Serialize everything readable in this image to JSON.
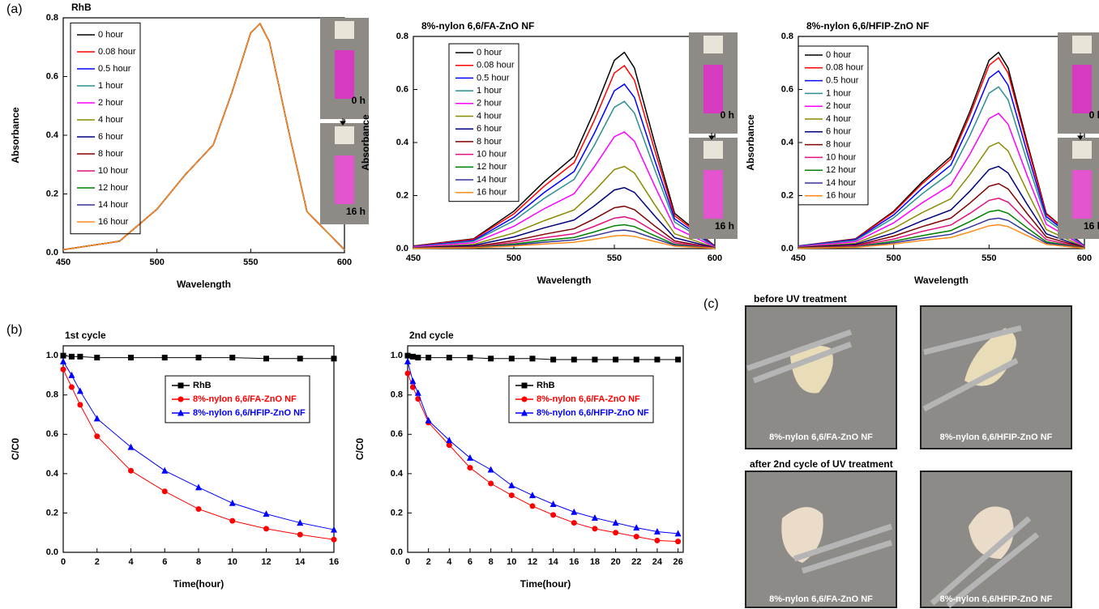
{
  "figure": {
    "panel_labels": [
      "(a)",
      "(b)",
      "(c)"
    ],
    "cuvette_labels": [
      "0 h",
      "16 h"
    ],
    "photo_headers": [
      "before UV treatment",
      "after 2nd cycle of UV treatment"
    ],
    "samples": [
      "8%-nylon 6,6/FA-ZnO NF",
      "8%-nylon 6,6/HFIP-ZnO NF"
    ]
  },
  "chart_data": [
    {
      "type": "line",
      "title": "RhB",
      "xlabel": "Wavelength",
      "ylabel": "Absorbance",
      "x": [
        450,
        480,
        500,
        515,
        530,
        540,
        550,
        555,
        560,
        570,
        580,
        600
      ],
      "xlim": [
        450,
        600
      ],
      "xticks": [
        450,
        500,
        550,
        600
      ],
      "ylim": [
        0,
        0.8
      ],
      "yticks": [
        {
          "value": 0,
          "label": "0.0"
        },
        0.2,
        0.4,
        0.6,
        0.8
      ],
      "series": [
        {
          "name": "0 hour",
          "color": "#000000",
          "values": [
            0.01,
            0.039,
            0.148,
            0.265,
            0.367,
            0.546,
            0.749,
            0.78,
            0.718,
            0.421,
            0.14,
            0.01
          ]
        },
        {
          "name": "0.08 hour",
          "color": "#ff0000",
          "values": [
            0.01,
            0.039,
            0.148,
            0.265,
            0.367,
            0.546,
            0.749,
            0.78,
            0.718,
            0.421,
            0.14,
            0.01
          ]
        },
        {
          "name": "0.5 hour",
          "color": "#0000ff",
          "values": [
            0.01,
            0.039,
            0.148,
            0.265,
            0.367,
            0.546,
            0.749,
            0.78,
            0.718,
            0.421,
            0.14,
            0.01
          ]
        },
        {
          "name": "1 hour",
          "color": "#2b8f8f",
          "values": [
            0.01,
            0.039,
            0.148,
            0.265,
            0.367,
            0.546,
            0.749,
            0.78,
            0.718,
            0.421,
            0.14,
            0.01
          ]
        },
        {
          "name": "2 hour",
          "color": "#ff00ff",
          "values": [
            0.01,
            0.039,
            0.148,
            0.265,
            0.367,
            0.546,
            0.749,
            0.78,
            0.718,
            0.421,
            0.14,
            0.01
          ]
        },
        {
          "name": "4 hour",
          "color": "#8a8a00",
          "values": [
            0.01,
            0.039,
            0.148,
            0.265,
            0.367,
            0.546,
            0.749,
            0.78,
            0.718,
            0.421,
            0.14,
            0.01
          ]
        },
        {
          "name": "6 hour",
          "color": "#000080",
          "values": [
            0.01,
            0.039,
            0.148,
            0.265,
            0.367,
            0.546,
            0.749,
            0.78,
            0.718,
            0.421,
            0.14,
            0.01
          ]
        },
        {
          "name": "8 hour",
          "color": "#800000",
          "values": [
            0.01,
            0.039,
            0.148,
            0.265,
            0.367,
            0.546,
            0.749,
            0.78,
            0.718,
            0.421,
            0.14,
            0.01
          ]
        },
        {
          "name": "10 hour",
          "color": "#e0107f",
          "values": [
            0.01,
            0.039,
            0.148,
            0.265,
            0.367,
            0.546,
            0.749,
            0.78,
            0.718,
            0.421,
            0.14,
            0.01
          ]
        },
        {
          "name": "12 hour",
          "color": "#008000",
          "values": [
            0.01,
            0.039,
            0.148,
            0.265,
            0.367,
            0.546,
            0.749,
            0.78,
            0.718,
            0.421,
            0.14,
            0.01
          ]
        },
        {
          "name": "14 hour",
          "color": "#333399",
          "values": [
            0.01,
            0.039,
            0.148,
            0.265,
            0.367,
            0.546,
            0.749,
            0.78,
            0.718,
            0.421,
            0.14,
            0.01
          ]
        },
        {
          "name": "16 hour",
          "color": "#ff8c1a",
          "values": [
            0.01,
            0.039,
            0.148,
            0.265,
            0.367,
            0.546,
            0.749,
            0.78,
            0.718,
            0.421,
            0.14,
            0.01
          ]
        }
      ]
    },
    {
      "type": "line",
      "title": "8%-nylon 6,6/FA-ZnO NF",
      "xlabel": "Wavelength",
      "ylabel": "Absorbance",
      "x": [
        450,
        480,
        500,
        515,
        530,
        540,
        550,
        555,
        560,
        570,
        580,
        600
      ],
      "xlim": [
        450,
        600
      ],
      "xticks": [
        450,
        500,
        550,
        600
      ],
      "ylim": [
        0,
        0.8
      ],
      "yticks": [
        {
          "value": 0,
          "label": "0.0"
        },
        0.2,
        0.4,
        0.6,
        0.8
      ],
      "series": [
        {
          "name": "0 hour",
          "color": "#000000",
          "values": [
            0.01,
            0.037,
            0.141,
            0.252,
            0.348,
            0.518,
            0.71,
            0.74,
            0.681,
            0.4,
            0.133,
            0.01
          ]
        },
        {
          "name": "0.08 hour",
          "color": "#ff0000",
          "values": [
            0.009,
            0.035,
            0.131,
            0.235,
            0.324,
            0.483,
            0.662,
            0.69,
            0.635,
            0.373,
            0.124,
            0.009
          ]
        },
        {
          "name": "0.5 hour",
          "color": "#0000ff",
          "values": [
            0.008,
            0.031,
            0.118,
            0.211,
            0.291,
            0.434,
            0.595,
            0.62,
            0.57,
            0.335,
            0.112,
            0.008
          ]
        },
        {
          "name": "1 hour",
          "color": "#2b8f8f",
          "values": [
            0.007,
            0.028,
            0.105,
            0.189,
            0.261,
            0.389,
            0.533,
            0.555,
            0.511,
            0.3,
            0.1,
            0.007
          ]
        },
        {
          "name": "2 hour",
          "color": "#ff00ff",
          "values": [
            0.006,
            0.022,
            0.084,
            0.15,
            0.207,
            0.308,
            0.422,
            0.44,
            0.405,
            0.238,
            0.079,
            0.006
          ]
        },
        {
          "name": "4 hour",
          "color": "#8a8a00",
          "values": [
            0.004,
            0.016,
            0.059,
            0.105,
            0.146,
            0.217,
            0.298,
            0.31,
            0.285,
            0.167,
            0.056,
            0.004
          ]
        },
        {
          "name": "6 hour",
          "color": "#000080",
          "values": [
            0.003,
            0.012,
            0.044,
            0.078,
            0.108,
            0.161,
            0.221,
            0.23,
            0.212,
            0.124,
            0.041,
            0.003
          ]
        },
        {
          "name": "8 hour",
          "color": "#800000",
          "values": [
            0.002,
            0.008,
            0.03,
            0.054,
            0.075,
            0.112,
            0.154,
            0.16,
            0.147,
            0.086,
            0.029,
            0.002
          ]
        },
        {
          "name": "10 hour",
          "color": "#e0107f",
          "values": [
            0.002,
            0.006,
            0.023,
            0.041,
            0.056,
            0.084,
            0.115,
            0.12,
            0.11,
            0.065,
            0.022,
            0.002
          ]
        },
        {
          "name": "12 hour",
          "color": "#008000",
          "values": [
            0.001,
            0.005,
            0.017,
            0.031,
            0.042,
            0.063,
            0.086,
            0.09,
            0.083,
            0.049,
            0.016,
            0.001
          ]
        },
        {
          "name": "14 hour",
          "color": "#333399",
          "values": [
            0.001,
            0.004,
            0.013,
            0.024,
            0.033,
            0.049,
            0.067,
            0.07,
            0.064,
            0.038,
            0.013,
            0.001
          ]
        },
        {
          "name": "16 hour",
          "color": "#ff8c1a",
          "values": [
            0.001,
            0.003,
            0.01,
            0.017,
            0.024,
            0.035,
            0.048,
            0.05,
            0.046,
            0.027,
            0.009,
            0.001
          ]
        }
      ]
    },
    {
      "type": "line",
      "title": "8%-nylon 6,6/HFIP-ZnO NF",
      "xlabel": "Wavelength",
      "ylabel": "Absorbance",
      "x": [
        450,
        480,
        500,
        515,
        530,
        540,
        550,
        555,
        560,
        570,
        580,
        600
      ],
      "xlim": [
        450,
        600
      ],
      "xticks": [
        450,
        500,
        550,
        600
      ],
      "ylim": [
        0,
        0.8
      ],
      "yticks": [
        {
          "value": 0,
          "label": "0.0"
        },
        0.2,
        0.4,
        0.6,
        0.8
      ],
      "series": [
        {
          "name": "0 hour",
          "color": "#000000",
          "values": [
            0.01,
            0.037,
            0.141,
            0.252,
            0.348,
            0.518,
            0.71,
            0.74,
            0.681,
            0.4,
            0.133,
            0.01
          ]
        },
        {
          "name": "0.08 hour",
          "color": "#ff0000",
          "values": [
            0.009,
            0.036,
            0.137,
            0.245,
            0.338,
            0.504,
            0.691,
            0.72,
            0.662,
            0.389,
            0.13,
            0.009
          ]
        },
        {
          "name": "0.5 hour",
          "color": "#0000ff",
          "values": [
            0.009,
            0.034,
            0.127,
            0.228,
            0.315,
            0.469,
            0.643,
            0.67,
            0.616,
            0.362,
            0.121,
            0.009
          ]
        },
        {
          "name": "1 hour",
          "color": "#2b8f8f",
          "values": [
            0.008,
            0.031,
            0.116,
            0.207,
            0.287,
            0.427,
            0.586,
            0.61,
            0.561,
            0.329,
            0.11,
            0.008
          ]
        },
        {
          "name": "2 hour",
          "color": "#ff00ff",
          "values": [
            0.007,
            0.026,
            0.097,
            0.173,
            0.24,
            0.357,
            0.49,
            0.51,
            0.469,
            0.275,
            0.092,
            0.007
          ]
        },
        {
          "name": "4 hour",
          "color": "#8a8a00",
          "values": [
            0.005,
            0.02,
            0.076,
            0.136,
            0.188,
            0.28,
            0.384,
            0.4,
            0.368,
            0.216,
            0.072,
            0.005
          ]
        },
        {
          "name": "6 hour",
          "color": "#000080",
          "values": [
            0.004,
            0.016,
            0.059,
            0.105,
            0.146,
            0.217,
            0.298,
            0.31,
            0.285,
            0.167,
            0.056,
            0.004
          ]
        },
        {
          "name": "8 hour",
          "color": "#800000",
          "values": [
            0.003,
            0.012,
            0.047,
            0.083,
            0.115,
            0.172,
            0.235,
            0.245,
            0.225,
            0.132,
            0.044,
            0.003
          ]
        },
        {
          "name": "10 hour",
          "color": "#e0107f",
          "values": [
            0.002,
            0.01,
            0.036,
            0.065,
            0.089,
            0.133,
            0.182,
            0.19,
            0.175,
            0.103,
            0.034,
            0.002
          ]
        },
        {
          "name": "12 hour",
          "color": "#008000",
          "values": [
            0.002,
            0.007,
            0.028,
            0.049,
            0.068,
            0.102,
            0.139,
            0.145,
            0.133,
            0.078,
            0.026,
            0.002
          ]
        },
        {
          "name": "14 hour",
          "color": "#333399",
          "values": [
            0.001,
            0.006,
            0.022,
            0.039,
            0.054,
            0.081,
            0.11,
            0.115,
            0.106,
            0.062,
            0.021,
            0.001
          ]
        },
        {
          "name": "16 hour",
          "color": "#ff8c1a",
          "values": [
            0.001,
            0.005,
            0.017,
            0.031,
            0.042,
            0.063,
            0.086,
            0.09,
            0.083,
            0.049,
            0.016,
            0.001
          ]
        }
      ]
    },
    {
      "type": "line",
      "title": "1st cycle",
      "xlabel": "Time(hour)",
      "ylabel": "C/C0",
      "x": [
        0,
        0.5,
        1,
        2,
        4,
        6,
        8,
        10,
        12,
        14,
        16
      ],
      "xlim": [
        0,
        16
      ],
      "xticks": [
        0,
        2,
        4,
        6,
        8,
        10,
        12,
        14,
        16
      ],
      "ylim": [
        0,
        1.05
      ],
      "yticks": [
        {
          "value": 0,
          "label": "0.0"
        },
        0.2,
        0.4,
        0.6,
        0.8,
        {
          "value": 1,
          "label": "1.0"
        }
      ],
      "series": [
        {
          "name": "RhB",
          "color": "#000000",
          "marker": "square",
          "values": [
            1.0,
            0.995,
            0.995,
            0.99,
            0.99,
            0.99,
            0.99,
            0.99,
            0.985,
            0.985,
            0.985
          ]
        },
        {
          "name": "8%-nylon 6,6/FA-ZnO NF",
          "color": "#ff0000",
          "marker": "circle",
          "values": [
            0.93,
            0.84,
            0.75,
            0.59,
            0.415,
            0.31,
            0.22,
            0.16,
            0.12,
            0.09,
            0.065
          ]
        },
        {
          "name": "8%-nylon 6,6/HFIP-ZnO NF",
          "color": "#0000ff",
          "marker": "triangle",
          "values": [
            0.97,
            0.9,
            0.82,
            0.68,
            0.535,
            0.415,
            0.33,
            0.25,
            0.195,
            0.15,
            0.115
          ]
        }
      ]
    },
    {
      "type": "line",
      "title": "2nd cycle",
      "xlabel": "Time(hour)",
      "ylabel": "C/C0",
      "x": [
        0,
        0.5,
        1,
        2,
        4,
        6,
        8,
        10,
        12,
        14,
        16,
        18,
        20,
        22,
        24,
        26
      ],
      "xlim": [
        0,
        26.5
      ],
      "xticks": [
        0,
        2,
        4,
        6,
        8,
        10,
        12,
        14,
        16,
        18,
        20,
        22,
        24,
        26
      ],
      "ylim": [
        0,
        1.05
      ],
      "yticks": [
        {
          "value": 0,
          "label": "0.0"
        },
        0.2,
        0.4,
        0.6,
        0.8,
        {
          "value": 1,
          "label": "1.0"
        }
      ],
      "series": [
        {
          "name": "RhB",
          "color": "#000000",
          "marker": "square",
          "values": [
            1.0,
            0.995,
            0.99,
            0.99,
            0.99,
            0.99,
            0.985,
            0.985,
            0.985,
            0.98,
            0.98,
            0.98,
            0.98,
            0.98,
            0.98,
            0.98
          ]
        },
        {
          "name": "8%-nylon 6,6/FA-ZnO NF",
          "color": "#ff0000",
          "marker": "circle",
          "values": [
            0.91,
            0.84,
            0.78,
            0.66,
            0.545,
            0.43,
            0.35,
            0.29,
            0.235,
            0.19,
            0.15,
            0.12,
            0.1,
            0.08,
            0.06,
            0.055
          ]
        },
        {
          "name": "8%-nylon 6,6/HFIP-ZnO NF",
          "color": "#0000ff",
          "marker": "triangle",
          "values": [
            0.97,
            0.87,
            0.81,
            0.67,
            0.57,
            0.48,
            0.42,
            0.34,
            0.29,
            0.245,
            0.205,
            0.175,
            0.15,
            0.125,
            0.105,
            0.095
          ]
        }
      ]
    }
  ]
}
